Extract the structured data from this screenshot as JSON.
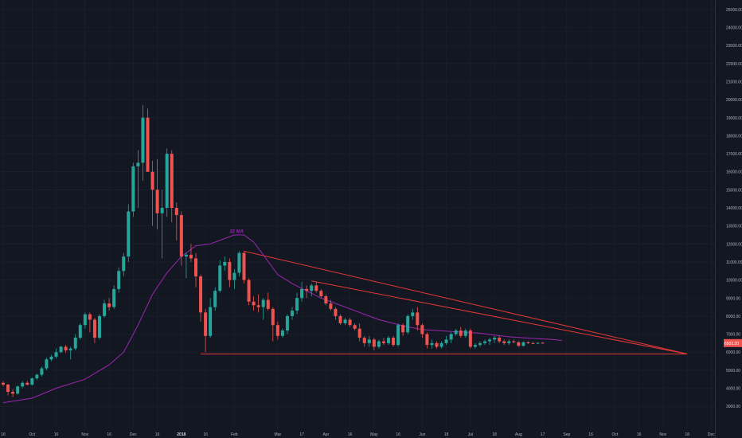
{
  "chart_data": {
    "type": "candlestick",
    "y_ticks": [
      "3000.00",
      "4000.00",
      "5000.00",
      "6000.00",
      "7000.00",
      "8000.00",
      "9000.00",
      "10000.00",
      "11000.00",
      "12000.00",
      "13000.00",
      "14000.00",
      "15000.00",
      "16000.00",
      "17000.00",
      "18000.00",
      "19000.00",
      "20000.00",
      "21000.00",
      "22000.00",
      "23000.00",
      "24000.00",
      "25000.00"
    ],
    "y_tick_values": [
      3000,
      4000,
      5000,
      6000,
      7000,
      8000,
      9000,
      10000,
      11000,
      12000,
      13000,
      14000,
      15000,
      16000,
      17000,
      18000,
      19000,
      20000,
      21000,
      22000,
      23000,
      24000,
      25000
    ],
    "ylim": [
      2300,
      25400
    ],
    "x_ticks": [
      {
        "label": "16",
        "bar": 0
      },
      {
        "label": "Oct",
        "bar": 6
      },
      {
        "label": "16",
        "bar": 11
      },
      {
        "label": "Nov",
        "bar": 17
      },
      {
        "label": "16",
        "bar": 22
      },
      {
        "label": "Dec",
        "bar": 27
      },
      {
        "label": "16",
        "bar": 32
      },
      {
        "label": "2018",
        "bar": 37,
        "bold": true
      },
      {
        "label": "16",
        "bar": 42
      },
      {
        "label": "Feb",
        "bar": 48
      },
      {
        "label": "Mar",
        "bar": 57
      },
      {
        "label": "17",
        "bar": 62
      },
      {
        "label": "Apr",
        "bar": 67
      },
      {
        "label": "16",
        "bar": 72
      },
      {
        "label": "May",
        "bar": 77
      },
      {
        "label": "16",
        "bar": 82
      },
      {
        "label": "Jun",
        "bar": 87
      },
      {
        "label": "18",
        "bar": 92
      },
      {
        "label": "Jul",
        "bar": 97
      },
      {
        "label": "18",
        "bar": 102
      },
      {
        "label": "Aug",
        "bar": 107
      },
      {
        "label": "17",
        "bar": 112
      },
      {
        "label": "Sep",
        "bar": 117
      },
      {
        "label": "16",
        "bar": 122
      },
      {
        "label": "Oct",
        "bar": 127
      },
      {
        "label": "16",
        "bar": 132
      },
      {
        "label": "Nov",
        "bar": 137
      },
      {
        "label": "18",
        "bar": 142
      },
      {
        "label": "Dec",
        "bar": 147
      }
    ],
    "ohlc": [
      [
        4300,
        4400,
        4100,
        4200
      ],
      [
        4200,
        4250,
        3600,
        3800
      ],
      [
        3800,
        3950,
        3500,
        3700
      ],
      [
        3700,
        4150,
        3650,
        4100
      ],
      [
        4100,
        4400,
        4000,
        4300
      ],
      [
        4300,
        4400,
        4150,
        4200
      ],
      [
        4200,
        4600,
        4150,
        4550
      ],
      [
        4550,
        4800,
        4450,
        4750
      ],
      [
        4750,
        5200,
        4650,
        5100
      ],
      [
        5100,
        5700,
        5000,
        5600
      ],
      [
        5600,
        5850,
        5500,
        5750
      ],
      [
        5750,
        6200,
        5650,
        6000
      ],
      [
        6000,
        6350,
        5950,
        6300
      ],
      [
        6300,
        6400,
        5950,
        6100
      ],
      [
        6100,
        6300,
        5600,
        6200
      ],
      [
        6200,
        7000,
        6100,
        6800
      ],
      [
        6800,
        7600,
        6700,
        7500
      ],
      [
        7500,
        8200,
        7300,
        8100
      ],
      [
        8100,
        8200,
        7100,
        7800
      ],
      [
        7800,
        7900,
        6500,
        6800
      ],
      [
        6800,
        8100,
        6700,
        8000
      ],
      [
        8000,
        8900,
        7900,
        8700
      ],
      [
        8700,
        9000,
        8300,
        8500
      ],
      [
        8500,
        9700,
        8400,
        9500
      ],
      [
        9500,
        10700,
        9300,
        10500
      ],
      [
        10500,
        11500,
        10200,
        11300
      ],
      [
        11300,
        14200,
        11000,
        13800
      ],
      [
        13800,
        16500,
        13500,
        16300
      ],
      [
        16300,
        17200,
        14000,
        16500
      ],
      [
        16500,
        19700,
        15500,
        19000
      ],
      [
        19000,
        19500,
        16000,
        16000
      ],
      [
        16000,
        16600,
        13000,
        15000
      ],
      [
        15000,
        16700,
        12800,
        13700
      ],
      [
        13700,
        15000,
        11200,
        14000
      ],
      [
        14000,
        17300,
        13500,
        17000
      ],
      [
        17000,
        17200,
        13200,
        14000
      ],
      [
        14000,
        14300,
        12200,
        13600
      ],
      [
        13600,
        13800,
        10800,
        11300
      ],
      [
        11300,
        11500,
        10100,
        11400
      ],
      [
        11400,
        12000,
        11000,
        11200
      ],
      [
        11200,
        11500,
        9600,
        10200
      ],
      [
        10200,
        10300,
        7700,
        8200
      ],
      [
        8200,
        8400,
        6000,
        6900
      ],
      [
        6900,
        9000,
        6800,
        8500
      ],
      [
        8500,
        9600,
        8300,
        9400
      ],
      [
        9400,
        11100,
        9300,
        10800
      ],
      [
        10800,
        11300,
        10500,
        11000
      ],
      [
        11000,
        11200,
        9600,
        10000
      ],
      [
        10000,
        10600,
        9500,
        10400
      ],
      [
        10400,
        11600,
        10200,
        11500
      ],
      [
        11500,
        11600,
        9800,
        10000
      ],
      [
        10000,
        10100,
        8600,
        8800
      ],
      [
        8800,
        9100,
        8300,
        8600
      ],
      [
        8600,
        9200,
        8200,
        8500
      ],
      [
        8500,
        9000,
        7800,
        8900
      ],
      [
        8900,
        9300,
        8300,
        8400
      ],
      [
        8400,
        8500,
        6600,
        7500
      ],
      [
        7500,
        7700,
        6700,
        6900
      ],
      [
        6900,
        7300,
        6800,
        7200
      ],
      [
        7200,
        8100,
        7000,
        8000
      ],
      [
        8000,
        8500,
        7800,
        8300
      ],
      [
        8300,
        9300,
        8100,
        9000
      ],
      [
        9000,
        9900,
        8800,
        9500
      ],
      [
        9500,
        9700,
        9000,
        9400
      ],
      [
        9400,
        9800,
        9100,
        9700
      ],
      [
        9700,
        9900,
        9300,
        9400
      ],
      [
        9400,
        9500,
        9000,
        9100
      ],
      [
        9100,
        9200,
        8600,
        8700
      ],
      [
        8700,
        8900,
        8300,
        8400
      ],
      [
        8400,
        8500,
        7800,
        8000
      ],
      [
        8000,
        8100,
        7500,
        7600
      ],
      [
        7600,
        7900,
        7500,
        7800
      ],
      [
        7800,
        7900,
        7400,
        7500
      ],
      [
        7500,
        7600,
        7200,
        7300
      ],
      [
        7300,
        7600,
        6600,
        6800
      ],
      [
        6800,
        6900,
        6300,
        6500
      ],
      [
        6500,
        6900,
        6300,
        6700
      ],
      [
        6700,
        6800,
        6100,
        6300
      ],
      [
        6300,
        6700,
        6200,
        6600
      ],
      [
        6600,
        6800,
        6400,
        6500
      ],
      [
        6500,
        6900,
        6400,
        6800
      ],
      [
        6800,
        6900,
        6300,
        6400
      ],
      [
        6400,
        7600,
        6300,
        7500
      ],
      [
        7500,
        7600,
        6900,
        7100
      ],
      [
        7100,
        8100,
        7000,
        8000
      ],
      [
        8000,
        8400,
        7800,
        8200
      ],
      [
        8200,
        8500,
        7200,
        7500
      ],
      [
        7500,
        7600,
        6800,
        7000
      ],
      [
        7000,
        7100,
        6200,
        6400
      ],
      [
        6400,
        6700,
        6200,
        6500
      ],
      [
        6500,
        6600,
        6200,
        6300
      ],
      [
        6300,
        6600,
        6200,
        6500
      ],
      [
        6500,
        6900,
        6400,
        6700
      ],
      [
        6700,
        7100,
        6500,
        7000
      ],
      [
        7000,
        7300,
        6900,
        7200
      ],
      [
        7200,
        7400,
        6800,
        6900
      ],
      [
        6900,
        7300,
        6800,
        7200
      ],
      [
        7200,
        7300,
        6200,
        6300
      ],
      [
        6300,
        6500,
        6200,
        6400
      ],
      [
        6400,
        6600,
        6300,
        6500
      ],
      [
        6500,
        6700,
        6400,
        6600
      ],
      [
        6600,
        6800,
        6400,
        6700
      ],
      [
        6700,
        6900,
        6500,
        6800
      ],
      [
        6800,
        6900,
        6500,
        6600
      ],
      [
        6600,
        6700,
        6400,
        6500
      ],
      [
        6500,
        6700,
        6400,
        6600
      ],
      [
        6600,
        6700,
        6500,
        6550
      ],
      [
        6550,
        6600,
        6300,
        6350
      ],
      [
        6350,
        6600,
        6300,
        6550
      ],
      [
        6550,
        6600,
        6450,
        6500
      ],
      [
        6500,
        6560,
        6460,
        6480
      ],
      [
        6480,
        6540,
        6440,
        6520
      ],
      [
        6520,
        6560,
        6480,
        6490
      ]
    ],
    "series": [
      {
        "name": "32 MA",
        "color": "#9c27b0",
        "points": [
          [
            0,
            3200
          ],
          [
            6,
            3450
          ],
          [
            11,
            4000
          ],
          [
            17,
            4500
          ],
          [
            22,
            5300
          ],
          [
            25,
            6000
          ],
          [
            28,
            7500
          ],
          [
            31,
            9200
          ],
          [
            34,
            10400
          ],
          [
            37,
            11300
          ],
          [
            40,
            11900
          ],
          [
            43,
            12000
          ],
          [
            46,
            12300
          ],
          [
            48,
            12500
          ],
          [
            50,
            12500
          ],
          [
            52,
            12100
          ],
          [
            54,
            11400
          ],
          [
            57,
            10300
          ],
          [
            60,
            9800
          ],
          [
            63,
            9400
          ],
          [
            66,
            9000
          ],
          [
            69,
            8700
          ],
          [
            72,
            8400
          ],
          [
            75,
            8100
          ],
          [
            78,
            7800
          ],
          [
            81,
            7600
          ],
          [
            84,
            7400
          ],
          [
            87,
            7250
          ],
          [
            90,
            7200
          ],
          [
            93,
            7150
          ],
          [
            96,
            7100
          ],
          [
            99,
            7050
          ],
          [
            102,
            6950
          ],
          [
            105,
            6850
          ],
          [
            108,
            6800
          ],
          [
            111,
            6750
          ],
          [
            114,
            6700
          ],
          [
            116,
            6650
          ]
        ]
      }
    ],
    "trendlines": [
      {
        "name": "upper-trendline-1",
        "color": "#e53935",
        "from": [
          50,
          11600
        ],
        "to": [
          142,
          5900
        ]
      },
      {
        "name": "upper-trendline-2",
        "color": "#e53935",
        "from": [
          64,
          9950
        ],
        "to": [
          142,
          5900
        ]
      },
      {
        "name": "support-line",
        "color": "#e53935",
        "from": [
          41,
          5900
        ],
        "to": [
          142,
          5900
        ]
      }
    ],
    "current_price": {
      "label": "6503.20",
      "value": 6503
    }
  },
  "annotations": {
    "ma_label": "32 MA",
    "ma_label_at": [
      47,
      12600
    ]
  },
  "colors": {
    "background": "#131722",
    "grid": "#1e2230",
    "up": "#26a69a",
    "down": "#ef5350",
    "text": "#b2b5be"
  }
}
